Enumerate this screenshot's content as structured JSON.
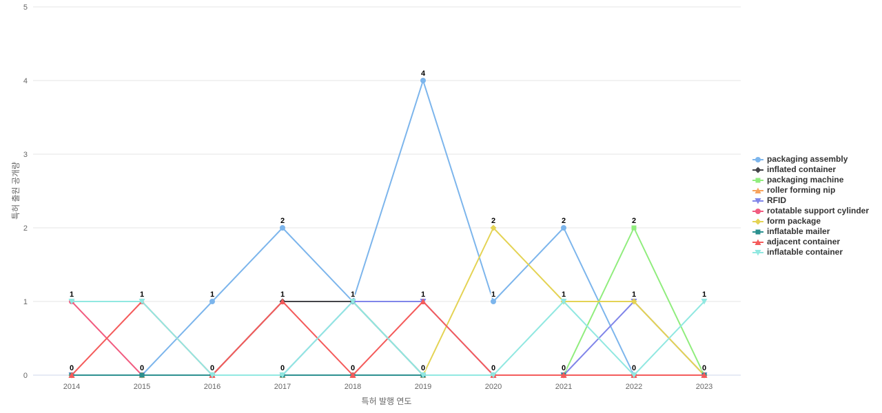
{
  "page": {
    "background": "#ffffff"
  },
  "chart_data": {
    "type": "line",
    "title": "",
    "xlabel": "특허 발행 연도",
    "ylabel": "특허 출원 공개량",
    "categories": [
      "2014",
      "2015",
      "2016",
      "2017",
      "2018",
      "2019",
      "2020",
      "2021",
      "2022",
      "2023"
    ],
    "ylim": [
      0,
      5
    ],
    "yticks": [
      0,
      1,
      2,
      3,
      4,
      5
    ],
    "grid": true,
    "legend_position": "right",
    "style_colors": {
      "grid_line": "#e6e6e6",
      "axis_line": "#ccd6eb",
      "tick_label": "#666666",
      "axis_title": "#666666",
      "legend_text": "#333333",
      "data_label": "#000000",
      "data_label_halo": "#ffffff"
    },
    "series": [
      {
        "name": "packaging assembly",
        "color": "#7cb5ec",
        "marker": "circle",
        "values": [
          0,
          0,
          1,
          2,
          1,
          4,
          1,
          2,
          0,
          0
        ]
      },
      {
        "name": "inflated container",
        "color": "#434348",
        "marker": "diamond",
        "values": [
          0,
          0,
          0,
          1,
          1,
          0,
          0,
          0,
          0,
          0
        ]
      },
      {
        "name": "packaging machine",
        "color": "#90ed7d",
        "marker": "square",
        "values": [
          0,
          0,
          0,
          0,
          0,
          0,
          0,
          0,
          2,
          0
        ]
      },
      {
        "name": "roller forming nip",
        "color": "#f7a35c",
        "marker": "triangle",
        "values": [
          0,
          0,
          0,
          0,
          0,
          0,
          0,
          0,
          0,
          0
        ]
      },
      {
        "name": "RFID",
        "color": "#8085e9",
        "marker": "triangle-down",
        "values": [
          0,
          0,
          0,
          0,
          1,
          1,
          0,
          0,
          1,
          0
        ]
      },
      {
        "name": "rotatable support cylinder",
        "color": "#f15c80",
        "marker": "circle",
        "values": [
          1,
          0,
          0,
          0,
          0,
          0,
          0,
          0,
          0,
          0
        ]
      },
      {
        "name": "form package",
        "color": "#e4d354",
        "marker": "diamond",
        "values": [
          0,
          0,
          0,
          0,
          0,
          0,
          2,
          1,
          1,
          0
        ]
      },
      {
        "name": "inflatable mailer",
        "color": "#2b908f",
        "marker": "square",
        "values": [
          0,
          0,
          0,
          0,
          0,
          0,
          0,
          0,
          0,
          0
        ]
      },
      {
        "name": "adjacent container",
        "color": "#f45b5b",
        "marker": "triangle",
        "values": [
          0,
          1,
          0,
          1,
          0,
          1,
          0,
          0,
          0,
          0
        ]
      },
      {
        "name": "inflatable container",
        "color": "#91e8e1",
        "marker": "triangle-down",
        "values": [
          1,
          1,
          0,
          0,
          1,
          0,
          0,
          1,
          0,
          1
        ]
      }
    ]
  }
}
